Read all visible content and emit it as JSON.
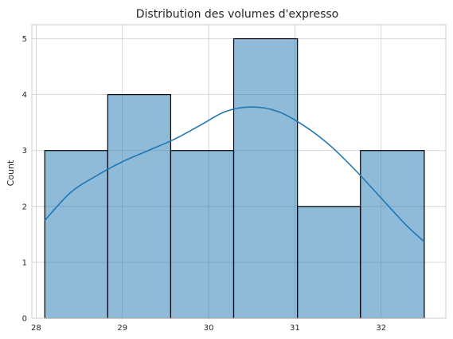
{
  "chart_data": {
    "type": "bar",
    "title": "Distribution des volumes d'expresso",
    "xlabel": "",
    "ylabel": "Count",
    "xlim": [
      27.95,
      32.75
    ],
    "ylim": [
      0,
      5.25
    ],
    "xticks": [
      28,
      29,
      30,
      31,
      32
    ],
    "yticks": [
      0,
      1,
      2,
      3,
      4,
      5
    ],
    "grid": true,
    "bins": [
      {
        "x0": 28.1,
        "x1": 28.83,
        "count": 3
      },
      {
        "x0": 28.83,
        "x1": 29.56,
        "count": 4
      },
      {
        "x0": 29.56,
        "x1": 30.29,
        "count": 3
      },
      {
        "x0": 30.29,
        "x1": 31.03,
        "count": 5
      },
      {
        "x0": 31.03,
        "x1": 31.76,
        "count": 2
      },
      {
        "x0": 31.76,
        "x1": 32.5,
        "count": 3
      }
    ],
    "kde": {
      "x": [
        28.1,
        28.4,
        28.7,
        29.0,
        29.3,
        29.6,
        29.9,
        30.2,
        30.5,
        30.8,
        31.1,
        31.4,
        31.7,
        32.0,
        32.3,
        32.5
      ],
      "y": [
        1.75,
        2.25,
        2.55,
        2.8,
        3.0,
        3.2,
        3.45,
        3.7,
        3.78,
        3.7,
        3.45,
        3.1,
        2.65,
        2.15,
        1.65,
        1.37
      ]
    },
    "colors": {
      "bar_fill": "#1f77b4",
      "bar_edge": "#000000",
      "kde_line": "#1f77b4",
      "grid": "#cccccc"
    }
  }
}
